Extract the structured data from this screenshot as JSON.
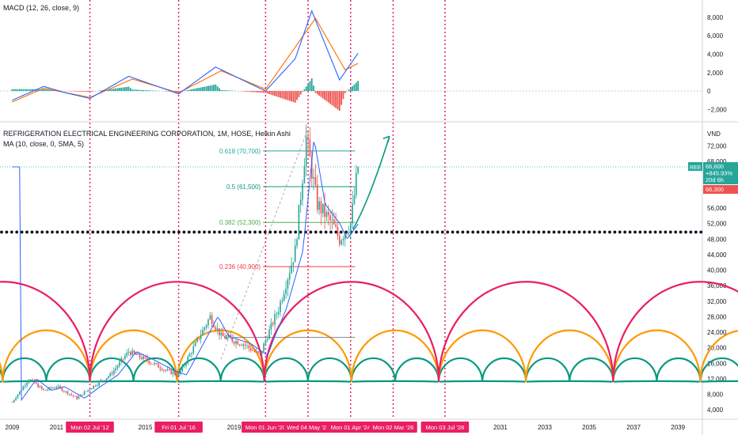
{
  "macd_panel": {
    "legend": "MACD (12, 26, close, 9)",
    "y_ticks": [
      8000,
      6000,
      4000,
      2000,
      0,
      -2000
    ],
    "y_tick_labels": [
      "8,000",
      "6,000",
      "4,000",
      "2,000",
      "0",
      "−2,000"
    ]
  },
  "price_panel": {
    "title": "REFRIGERATION ELECTRICAL ENGINEERING CORPORATION, 1M, HOSE, Heikin Ashi",
    "ma_legend": "MA (10, close, 0, SMA, 5)",
    "currency": "VND",
    "y_ticks": [
      72000,
      68000,
      56000,
      52000,
      48000,
      44000,
      40000,
      36000,
      32000,
      28000,
      24000,
      20000,
      16000,
      12000,
      8000,
      4000
    ],
    "y_tick_labels": [
      "72,000",
      "68,000",
      "56,000",
      "52,000",
      "48,000",
      "44,000",
      "40,000",
      "36,000",
      "32,000",
      "28,000",
      "24,000",
      "20,000",
      "16,000",
      "12,000",
      "8,000",
      "4,000"
    ],
    "price_tag": {
      "symbol": "REE",
      "price": "66,600",
      "change": "+845.93%",
      "countdown": "20d 6h"
    },
    "ma_tag": "66,300",
    "fib_levels": [
      {
        "label": "0.618 (70,700)",
        "price": 70700,
        "color": "#26a69a"
      },
      {
        "label": "0.5 (61,500)",
        "price": 61500,
        "color": "#089981"
      },
      {
        "label": "0.382 (52,300)",
        "price": 52300,
        "color": "#4caf50"
      },
      {
        "label": "0.236 (40,900)",
        "price": 40900,
        "color": "#f23645"
      }
    ],
    "early_fib_label": "0.2"
  },
  "time_axis": {
    "year_labels": [
      "2009",
      "2011",
      "2015",
      "2019",
      "2031",
      "2033",
      "2035",
      "2037",
      "2039"
    ],
    "cycle_labels": [
      "Mon 02 Jul '12",
      "Fri 01 Jul '16",
      "Mon 01 Jun '20",
      "Wed 04 May '22",
      "Mon 01 Apr '24",
      "Mon 02 Mar '26",
      "Mon 03 Jul '28"
    ],
    "cycle_dates": [
      "2012-07",
      "2016-07",
      "2020-06",
      "2022-05",
      "2024-04",
      "2026-03",
      "2028-07"
    ],
    "partial_label": "7"
  },
  "colors": {
    "cycle_large": "#e91e63",
    "cycle_medium": "#ff9800",
    "cycle_small": "#089981",
    "macd_line": "#2962ff",
    "signal_line": "#ff6d00",
    "hist_up": "#26a69a",
    "hist_down": "#ef5350",
    "candle_up": "#26a69a",
    "candle_down": "#ef5350",
    "support_dots": "#131722",
    "date_marker": "#e91e63"
  },
  "chart_data": {
    "type": "candlestick",
    "title": "REFRIGERATION ELECTRICAL ENGINEERING CORPORATION, 1M, HOSE, Heikin Ashi",
    "x_range": [
      "2009",
      "2039"
    ],
    "price_ylim": [
      4000,
      76000
    ],
    "price_series_approx": [
      {
        "date": "2009-01",
        "close": 6000
      },
      {
        "date": "2009-10",
        "close": 12000
      },
      {
        "date": "2010-06",
        "close": 9000
      },
      {
        "date": "2011-01",
        "close": 10000
      },
      {
        "date": "2011-12",
        "close": 7000
      },
      {
        "date": "2012-07",
        "close": 9500
      },
      {
        "date": "2013-06",
        "close": 13000
      },
      {
        "date": "2014-04",
        "close": 19000
      },
      {
        "date": "2015-01",
        "close": 17000
      },
      {
        "date": "2016-01",
        "close": 14000
      },
      {
        "date": "2016-07",
        "close": 13000
      },
      {
        "date": "2017-03",
        "close": 20000
      },
      {
        "date": "2017-12",
        "close": 28000
      },
      {
        "date": "2018-06",
        "close": 23000
      },
      {
        "date": "2019-06",
        "close": 21000
      },
      {
        "date": "2020-03",
        "close": 18000
      },
      {
        "date": "2020-06",
        "close": 22000
      },
      {
        "date": "2021-01",
        "close": 30000
      },
      {
        "date": "2021-10",
        "close": 45000
      },
      {
        "date": "2022-04",
        "close": 74000
      },
      {
        "date": "2022-10",
        "close": 57000
      },
      {
        "date": "2023-06",
        "close": 52000
      },
      {
        "date": "2023-10",
        "close": 48000
      },
      {
        "date": "2024-04",
        "close": 52000
      },
      {
        "date": "2024-08",
        "close": 66600
      }
    ],
    "last_close": 66600,
    "support_level": 49800,
    "macd_ylim": [
      -2500,
      9000
    ],
    "macd_series_approx": [
      {
        "date": "2009-01",
        "macd": -1000
      },
      {
        "date": "2010-06",
        "macd": 500
      },
      {
        "date": "2011-06",
        "macd": -200
      },
      {
        "date": "2012-07",
        "macd": -800
      },
      {
        "date": "2014-04",
        "macd": 1600
      },
      {
        "date": "2016-07",
        "macd": -300
      },
      {
        "date": "2018-03",
        "macd": 2600
      },
      {
        "date": "2020-06",
        "macd": 0
      },
      {
        "date": "2021-10",
        "macd": 3500
      },
      {
        "date": "2022-07",
        "macd": 8700
      },
      {
        "date": "2023-10",
        "macd": 1200
      },
      {
        "date": "2024-08",
        "macd": 4100
      }
    ],
    "signal_series_approx": [
      {
        "date": "2009-01",
        "signal": -1200
      },
      {
        "date": "2010-06",
        "signal": 300
      },
      {
        "date": "2012-07",
        "signal": -700
      },
      {
        "date": "2014-06",
        "signal": 1300
      },
      {
        "date": "2016-07",
        "signal": -200
      },
      {
        "date": "2018-06",
        "signal": 2200
      },
      {
        "date": "2020-06",
        "signal": 200
      },
      {
        "date": "2022-09",
        "signal": 7900
      },
      {
        "date": "2024-01",
        "signal": 2300
      },
      {
        "date": "2024-08",
        "signal": 3000
      }
    ]
  }
}
